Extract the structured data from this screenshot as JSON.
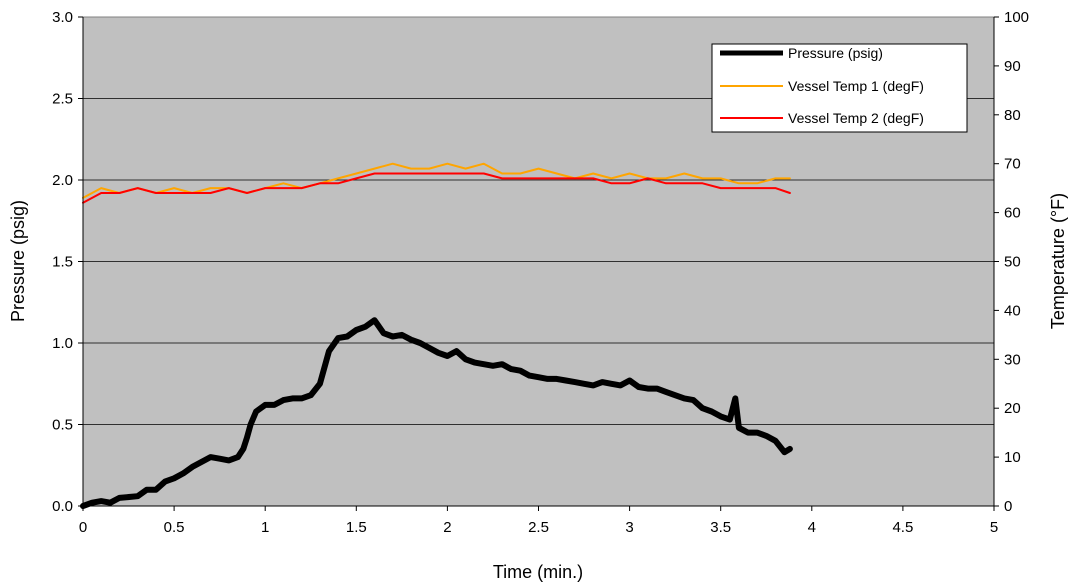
{
  "chart_data": {
    "type": "line",
    "xlabel": "Time (min.)",
    "ylabel": "Pressure (psig)",
    "y2label": "Temperature (°F)",
    "xlim": [
      0,
      5
    ],
    "ylim": [
      0,
      3.0
    ],
    "y2lim": [
      0,
      100
    ],
    "x_ticks": [
      "0",
      "0.5",
      "1",
      "1.5",
      "2",
      "2.5",
      "3",
      "3.5",
      "4",
      "4.5",
      "5"
    ],
    "y_ticks": [
      "0.0",
      "0.5",
      "1.0",
      "1.5",
      "2.0",
      "2.5",
      "3.0"
    ],
    "y2_ticks": [
      "0",
      "10",
      "20",
      "30",
      "40",
      "50",
      "60",
      "70",
      "80",
      "90",
      "100"
    ],
    "grid": "horizontal",
    "plot_background": "#c0c0c0",
    "legend_position": "top-right",
    "series": [
      {
        "name": "Pressure (psig)",
        "axis": "left",
        "color": "#000000",
        "x": [
          0,
          0.05,
          0.1,
          0.15,
          0.2,
          0.3,
          0.35,
          0.4,
          0.45,
          0.5,
          0.55,
          0.6,
          0.65,
          0.7,
          0.75,
          0.8,
          0.85,
          0.88,
          0.9,
          0.92,
          0.95,
          1.0,
          1.05,
          1.1,
          1.15,
          1.2,
          1.25,
          1.3,
          1.35,
          1.4,
          1.45,
          1.5,
          1.55,
          1.6,
          1.65,
          1.7,
          1.75,
          1.8,
          1.85,
          1.9,
          1.95,
          2.0,
          2.05,
          2.1,
          2.15,
          2.2,
          2.25,
          2.3,
          2.35,
          2.4,
          2.45,
          2.5,
          2.55,
          2.6,
          2.65,
          2.7,
          2.75,
          2.8,
          2.85,
          2.9,
          2.95,
          3.0,
          3.05,
          3.1,
          3.15,
          3.2,
          3.25,
          3.3,
          3.35,
          3.4,
          3.45,
          3.5,
          3.55,
          3.58,
          3.6,
          3.65,
          3.7,
          3.75,
          3.8,
          3.85,
          3.88
        ],
        "values": [
          0.0,
          0.02,
          0.03,
          0.02,
          0.05,
          0.06,
          0.1,
          0.1,
          0.15,
          0.17,
          0.2,
          0.24,
          0.27,
          0.3,
          0.29,
          0.28,
          0.3,
          0.35,
          0.42,
          0.5,
          0.58,
          0.62,
          0.62,
          0.65,
          0.66,
          0.66,
          0.68,
          0.75,
          0.95,
          1.03,
          1.04,
          1.08,
          1.1,
          1.14,
          1.06,
          1.04,
          1.05,
          1.02,
          1.0,
          0.97,
          0.94,
          0.92,
          0.95,
          0.9,
          0.88,
          0.87,
          0.86,
          0.87,
          0.84,
          0.83,
          0.8,
          0.79,
          0.78,
          0.78,
          0.77,
          0.76,
          0.75,
          0.74,
          0.76,
          0.75,
          0.74,
          0.77,
          0.73,
          0.72,
          0.72,
          0.7,
          0.68,
          0.66,
          0.65,
          0.6,
          0.58,
          0.55,
          0.53,
          0.66,
          0.48,
          0.45,
          0.45,
          0.43,
          0.4,
          0.33,
          0.35
        ]
      },
      {
        "name": "Vessel Temp 1 (degF)",
        "axis": "right",
        "color": "#ffa500",
        "x": [
          0,
          0.1,
          0.2,
          0.3,
          0.4,
          0.5,
          0.6,
          0.7,
          0.8,
          0.9,
          1.0,
          1.1,
          1.2,
          1.3,
          1.4,
          1.5,
          1.6,
          1.7,
          1.8,
          1.9,
          2.0,
          2.1,
          2.2,
          2.3,
          2.4,
          2.5,
          2.6,
          2.7,
          2.8,
          2.9,
          3.0,
          3.1,
          3.2,
          3.3,
          3.4,
          3.5,
          3.6,
          3.7,
          3.8,
          3.88
        ],
        "values": [
          63,
          65,
          64,
          65,
          64,
          65,
          64,
          65,
          65,
          64,
          65,
          66,
          65,
          66,
          67,
          68,
          69,
          70,
          69,
          69,
          70,
          69,
          70,
          68,
          68,
          69,
          68,
          67,
          68,
          67,
          68,
          67,
          67,
          68,
          67,
          67,
          66,
          66,
          67,
          67
        ]
      },
      {
        "name": "Vessel Temp 2 (degF)",
        "axis": "right",
        "color": "#ff0000",
        "x": [
          0,
          0.1,
          0.2,
          0.3,
          0.4,
          0.5,
          0.6,
          0.7,
          0.8,
          0.9,
          1.0,
          1.1,
          1.2,
          1.3,
          1.4,
          1.5,
          1.6,
          1.7,
          1.8,
          1.9,
          2.0,
          2.1,
          2.2,
          2.3,
          2.4,
          2.5,
          2.6,
          2.7,
          2.8,
          2.9,
          3.0,
          3.1,
          3.2,
          3.3,
          3.4,
          3.5,
          3.6,
          3.7,
          3.8,
          3.88
        ],
        "values": [
          62,
          64,
          64,
          65,
          64,
          64,
          64,
          64,
          65,
          64,
          65,
          65,
          65,
          66,
          66,
          67,
          68,
          68,
          68,
          68,
          68,
          68,
          68,
          67,
          67,
          67,
          67,
          67,
          67,
          66,
          66,
          67,
          66,
          66,
          66,
          65,
          65,
          65,
          65,
          64
        ]
      }
    ]
  }
}
